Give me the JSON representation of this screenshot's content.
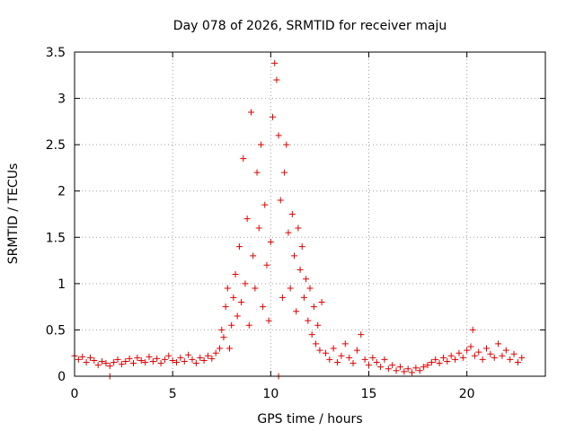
{
  "chart_data": {
    "type": "scatter",
    "title": "Day 078 of 2026, SRMTID for receiver maju",
    "xlabel": "GPS time / hours",
    "ylabel": "SRMTID / TECUs",
    "xlim": [
      0,
      24
    ],
    "ylim": [
      0,
      3.5
    ],
    "xticks": [
      0,
      5,
      10,
      15,
      20
    ],
    "yticks": [
      0,
      0.5,
      1,
      1.5,
      2,
      2.5,
      3,
      3.5
    ],
    "xtick_labels": [
      "0",
      "5",
      "10",
      "15",
      "20"
    ],
    "ytick_labels": [
      "0",
      "0.5",
      "1",
      "1.5",
      "2",
      "2.5",
      "3",
      "3.5"
    ],
    "grid": true,
    "marker": "plus",
    "color": "#e00000",
    "series": [
      {
        "name": "SRMTID",
        "points": [
          [
            0.0,
            0.22
          ],
          [
            0.2,
            0.18
          ],
          [
            0.4,
            0.21
          ],
          [
            0.6,
            0.15
          ],
          [
            0.8,
            0.2
          ],
          [
            1.0,
            0.17
          ],
          [
            1.2,
            0.12
          ],
          [
            1.4,
            0.16
          ],
          [
            1.6,
            0.14
          ],
          [
            1.8,
            0.11
          ],
          [
            2.0,
            0.15
          ],
          [
            2.2,
            0.18
          ],
          [
            2.4,
            0.13
          ],
          [
            2.6,
            0.16
          ],
          [
            2.8,
            0.19
          ],
          [
            3.0,
            0.14
          ],
          [
            3.2,
            0.2
          ],
          [
            3.4,
            0.17
          ],
          [
            3.6,
            0.15
          ],
          [
            3.8,
            0.21
          ],
          [
            4.0,
            0.16
          ],
          [
            4.2,
            0.19
          ],
          [
            4.4,
            0.14
          ],
          [
            4.6,
            0.18
          ],
          [
            4.8,
            0.22
          ],
          [
            5.0,
            0.17
          ],
          [
            5.2,
            0.15
          ],
          [
            5.4,
            0.2
          ],
          [
            5.6,
            0.16
          ],
          [
            5.8,
            0.23
          ],
          [
            6.0,
            0.18
          ],
          [
            6.2,
            0.14
          ],
          [
            6.4,
            0.2
          ],
          [
            6.6,
            0.17
          ],
          [
            6.8,
            0.22
          ],
          [
            7.0,
            0.19
          ],
          [
            7.2,
            0.25
          ],
          [
            7.4,
            0.3
          ],
          [
            7.5,
            0.5
          ],
          [
            7.6,
            0.42
          ],
          [
            7.7,
            0.75
          ],
          [
            7.8,
            0.95
          ],
          [
            7.9,
            0.3
          ],
          [
            8.0,
            0.55
          ],
          [
            8.1,
            0.85
          ],
          [
            8.2,
            1.1
          ],
          [
            8.3,
            0.65
          ],
          [
            8.4,
            1.4
          ],
          [
            8.5,
            0.8
          ],
          [
            8.6,
            2.35
          ],
          [
            8.7,
            1.0
          ],
          [
            8.8,
            1.7
          ],
          [
            8.9,
            0.55
          ],
          [
            9.0,
            2.85
          ],
          [
            9.1,
            1.3
          ],
          [
            9.2,
            0.95
          ],
          [
            9.3,
            2.2
          ],
          [
            9.4,
            1.6
          ],
          [
            9.5,
            2.5
          ],
          [
            9.6,
            0.75
          ],
          [
            9.7,
            1.85
          ],
          [
            9.8,
            1.2
          ],
          [
            9.9,
            0.6
          ],
          [
            10.0,
            1.45
          ],
          [
            10.1,
            2.8
          ],
          [
            10.2,
            3.38
          ],
          [
            10.3,
            3.2
          ],
          [
            10.4,
            2.6
          ],
          [
            10.5,
            1.9
          ],
          [
            10.6,
            0.85
          ],
          [
            10.7,
            2.2
          ],
          [
            10.8,
            2.5
          ],
          [
            10.9,
            1.55
          ],
          [
            11.0,
            0.95
          ],
          [
            11.1,
            1.75
          ],
          [
            11.2,
            1.3
          ],
          [
            11.3,
            0.7
          ],
          [
            11.4,
            1.6
          ],
          [
            11.5,
            1.15
          ],
          [
            11.6,
            1.4
          ],
          [
            11.7,
            0.85
          ],
          [
            11.8,
            1.05
          ],
          [
            11.9,
            0.6
          ],
          [
            12.0,
            0.95
          ],
          [
            12.1,
            0.45
          ],
          [
            12.2,
            0.75
          ],
          [
            12.3,
            0.35
          ],
          [
            12.4,
            0.55
          ],
          [
            12.5,
            0.28
          ],
          [
            12.6,
            0.8
          ],
          [
            12.8,
            0.25
          ],
          [
            13.0,
            0.18
          ],
          [
            13.2,
            0.3
          ],
          [
            13.4,
            0.15
          ],
          [
            13.6,
            0.22
          ],
          [
            13.8,
            0.35
          ],
          [
            14.0,
            0.2
          ],
          [
            14.2,
            0.14
          ],
          [
            14.4,
            0.28
          ],
          [
            14.6,
            0.45
          ],
          [
            14.8,
            0.18
          ],
          [
            15.0,
            0.12
          ],
          [
            15.2,
            0.2
          ],
          [
            15.4,
            0.15
          ],
          [
            15.6,
            0.1
          ],
          [
            15.8,
            0.18
          ],
          [
            16.0,
            0.08
          ],
          [
            16.2,
            0.12
          ],
          [
            16.4,
            0.06
          ],
          [
            16.6,
            0.1
          ],
          [
            16.8,
            0.05
          ],
          [
            17.0,
            0.08
          ],
          [
            17.2,
            0.04
          ],
          [
            17.4,
            0.09
          ],
          [
            17.6,
            0.06
          ],
          [
            17.8,
            0.1
          ],
          [
            18.0,
            0.12
          ],
          [
            18.2,
            0.15
          ],
          [
            18.4,
            0.18
          ],
          [
            18.6,
            0.14
          ],
          [
            18.8,
            0.2
          ],
          [
            19.0,
            0.16
          ],
          [
            19.2,
            0.22
          ],
          [
            19.4,
            0.18
          ],
          [
            19.6,
            0.25
          ],
          [
            19.8,
            0.2
          ],
          [
            20.0,
            0.28
          ],
          [
            20.2,
            0.32
          ],
          [
            20.3,
            0.5
          ],
          [
            20.4,
            0.22
          ],
          [
            20.6,
            0.26
          ],
          [
            20.8,
            0.18
          ],
          [
            21.0,
            0.3
          ],
          [
            21.2,
            0.24
          ],
          [
            21.4,
            0.2
          ],
          [
            21.6,
            0.35
          ],
          [
            21.8,
            0.22
          ],
          [
            22.0,
            0.28
          ],
          [
            22.2,
            0.18
          ],
          [
            22.4,
            0.24
          ],
          [
            22.6,
            0.15
          ],
          [
            22.8,
            0.2
          ],
          [
            1.8,
            0.0
          ],
          [
            10.4,
            0.0
          ]
        ]
      }
    ]
  }
}
